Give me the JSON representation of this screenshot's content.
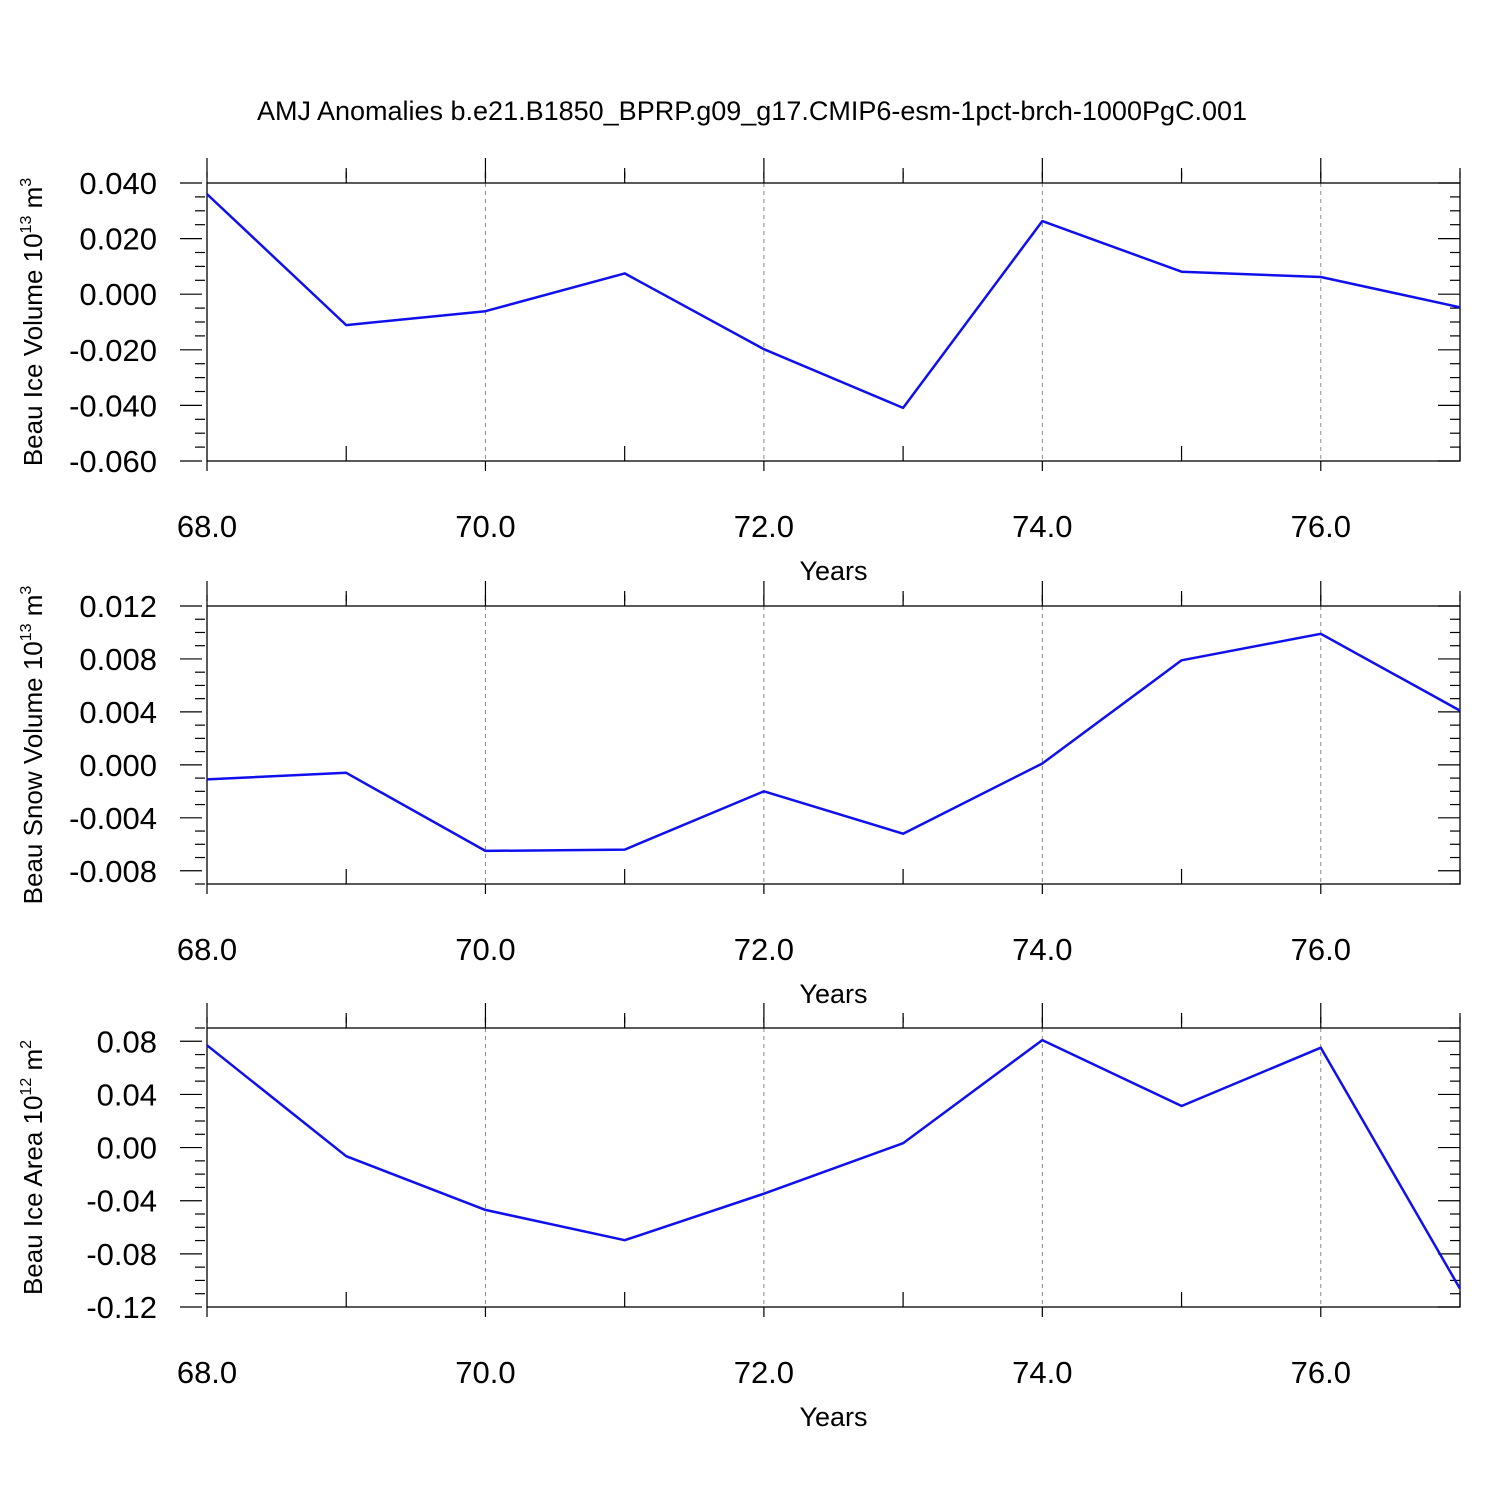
{
  "figure": {
    "title": "AMJ Anomalies b.e21.B1850_BPRP.g09_g17.CMIP6-esm-1pct-brch-1000PgC.001"
  },
  "chart_data": [
    {
      "type": "line",
      "xlabel": "Years",
      "ylabel_main": "Beau Ice Volume 10",
      "ylabel_exp": "13",
      "ylabel_unit": " m",
      "ylabel_unit_exp": "3",
      "xlim": [
        68,
        77
      ],
      "ylim": [
        -0.06,
        0.04
      ],
      "x_ticks": [
        68,
        70,
        72,
        74,
        76
      ],
      "x_tick_labels": [
        "68.0",
        "70.0",
        "72.0",
        "74.0",
        "76.0"
      ],
      "y_ticks": [
        -0.06,
        -0.04,
        -0.02,
        0.0,
        0.02,
        0.04
      ],
      "y_tick_labels": [
        "-0.060",
        "-0.040",
        "-0.020",
        "0.000",
        "0.020",
        "0.040"
      ],
      "grid": "vertical dashed at major x ticks",
      "color": "#1010ee",
      "x": [
        68,
        69,
        70,
        71,
        72,
        73,
        74,
        75,
        76,
        77
      ],
      "y": [
        0.036,
        -0.0111,
        -0.0061,
        0.0075,
        -0.0198,
        -0.0409,
        0.0263,
        0.0081,
        0.0062,
        -0.0047
      ]
    },
    {
      "type": "line",
      "xlabel": "Years",
      "ylabel_main": "Beau Snow Volume 10",
      "ylabel_exp": "13",
      "ylabel_unit": " m",
      "ylabel_unit_exp": "3",
      "xlim": [
        68,
        77
      ],
      "ylim": [
        -0.009,
        0.012
      ],
      "x_ticks": [
        68,
        70,
        72,
        74,
        76
      ],
      "x_tick_labels": [
        "68.0",
        "70.0",
        "72.0",
        "74.0",
        "76.0"
      ],
      "y_ticks": [
        -0.008,
        -0.004,
        0.0,
        0.004,
        0.008,
        0.012
      ],
      "y_tick_labels": [
        "-0.008",
        "-0.004",
        "0.000",
        "0.004",
        "0.008",
        "0.012"
      ],
      "grid": "vertical dashed at major x ticks",
      "color": "#1010ee",
      "x": [
        68,
        69,
        70,
        71,
        72,
        73,
        74,
        75,
        76,
        77
      ],
      "y": [
        -0.0011,
        -0.0006,
        -0.0065,
        -0.0064,
        -0.002,
        -0.0052,
        0.0001,
        0.0079,
        0.0099,
        0.0041
      ]
    },
    {
      "type": "line",
      "xlabel": "Years",
      "ylabel_main": "Beau Ice Area 10",
      "ylabel_exp": "12",
      "ylabel_unit": " m",
      "ylabel_unit_exp": "2",
      "xlim": [
        68,
        77
      ],
      "ylim": [
        -0.12,
        0.09
      ],
      "x_ticks": [
        68,
        70,
        72,
        74,
        76
      ],
      "x_tick_labels": [
        "68.0",
        "70.0",
        "72.0",
        "74.0",
        "76.0"
      ],
      "y_ticks": [
        -0.12,
        -0.08,
        -0.04,
        0.0,
        0.04,
        0.08
      ],
      "y_tick_labels": [
        "-0.12",
        "-0.08",
        "-0.04",
        "0.00",
        "0.04",
        "0.08"
      ],
      "grid": "vertical dashed at major x ticks",
      "color": "#1010ee",
      "x": [
        68,
        69,
        70,
        71,
        72,
        73,
        74,
        75,
        76,
        77
      ],
      "y": [
        0.077,
        -0.0065,
        -0.0469,
        -0.0697,
        -0.0347,
        0.0033,
        0.0809,
        0.0313,
        0.0752,
        -0.1062
      ]
    }
  ]
}
